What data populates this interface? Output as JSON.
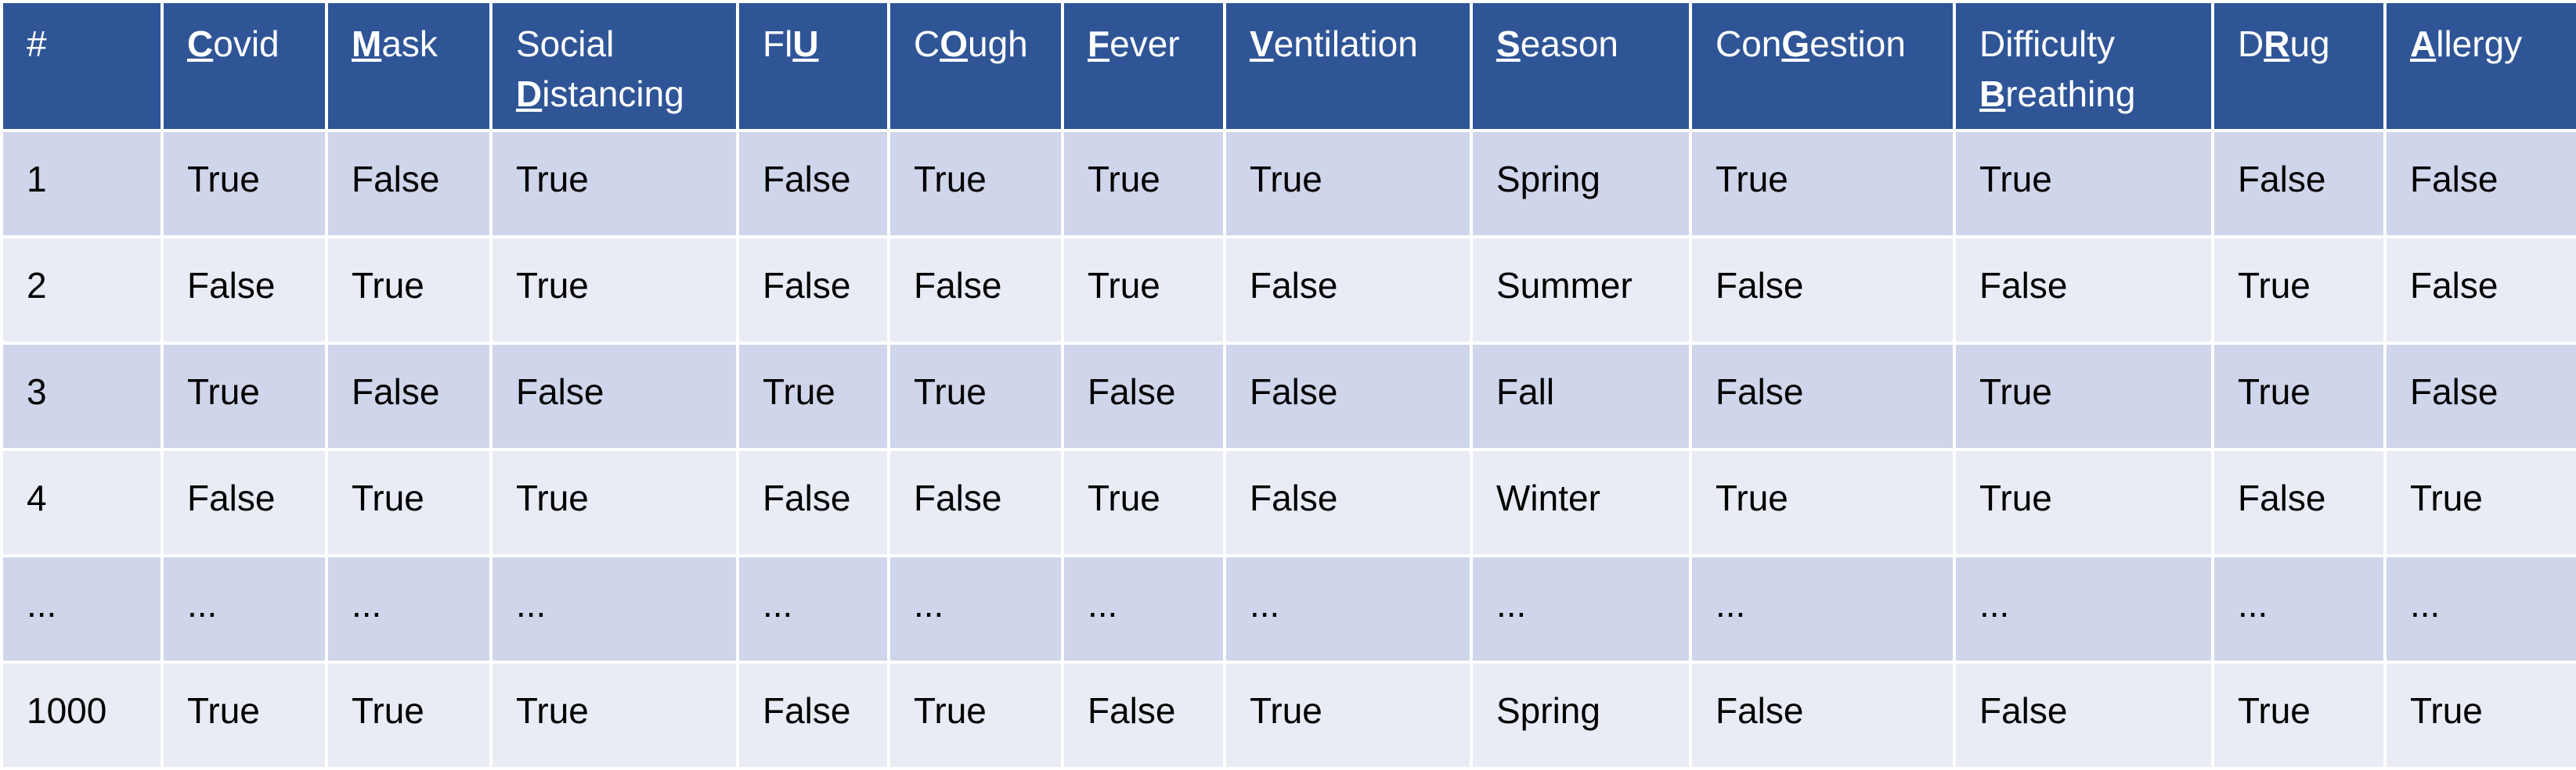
{
  "table": {
    "headers": [
      {
        "pre": "#",
        "key": "",
        "post": "",
        "br": false,
        "pre2": "",
        "key2": "",
        "post2": ""
      },
      {
        "pre": "",
        "key": "C",
        "post": "ovid",
        "br": false,
        "pre2": "",
        "key2": "",
        "post2": ""
      },
      {
        "pre": "",
        "key": "M",
        "post": "ask",
        "br": false,
        "pre2": "",
        "key2": "",
        "post2": ""
      },
      {
        "pre": "Social",
        "key": "",
        "post": "",
        "br": true,
        "pre2": "",
        "key2": "D",
        "post2": "istancing"
      },
      {
        "pre": "Fl",
        "key": "U",
        "post": "",
        "br": false,
        "pre2": "",
        "key2": "",
        "post2": ""
      },
      {
        "pre": "C",
        "key": "O",
        "post": "ugh",
        "br": false,
        "pre2": "",
        "key2": "",
        "post2": ""
      },
      {
        "pre": "",
        "key": "F",
        "post": "ever",
        "br": false,
        "pre2": "",
        "key2": "",
        "post2": ""
      },
      {
        "pre": "",
        "key": "V",
        "post": "entilation",
        "br": false,
        "pre2": "",
        "key2": "",
        "post2": ""
      },
      {
        "pre": "",
        "key": "S",
        "post": "eason",
        "br": false,
        "pre2": "",
        "key2": "",
        "post2": ""
      },
      {
        "pre": "Con",
        "key": "G",
        "post": "estion",
        "br": false,
        "pre2": "",
        "key2": "",
        "post2": ""
      },
      {
        "pre": "Difficulty",
        "key": "",
        "post": "",
        "br": true,
        "pre2": "",
        "key2": "B",
        "post2": "reathing"
      },
      {
        "pre": "D",
        "key": "R",
        "post": "ug",
        "br": false,
        "pre2": "",
        "key2": "",
        "post2": ""
      },
      {
        "pre": "",
        "key": "A",
        "post": "llergy",
        "br": false,
        "pre2": "",
        "key2": "",
        "post2": ""
      }
    ],
    "rows": [
      [
        "1",
        "True",
        "False",
        "True",
        "False",
        "True",
        "True",
        "True",
        "Spring",
        "True",
        "True",
        "False",
        "False"
      ],
      [
        "2",
        "False",
        "True",
        "True",
        "False",
        "False",
        "True",
        "False",
        "Summer",
        "False",
        "False",
        "True",
        "False"
      ],
      [
        "3",
        "True",
        "False",
        "False",
        "True",
        "True",
        "False",
        "False",
        "Fall",
        "False",
        "True",
        "True",
        "False"
      ],
      [
        "4",
        "False",
        "True",
        "True",
        "False",
        "False",
        "True",
        "False",
        "Winter",
        "True",
        "True",
        "False",
        "True"
      ],
      [
        "...",
        "...",
        "...",
        "...",
        "...",
        "...",
        "...",
        "...",
        "...",
        "...",
        "...",
        "...",
        "..."
      ],
      [
        "1000",
        "True",
        "True",
        "True",
        "False",
        "True",
        "False",
        "True",
        "Spring",
        "False",
        "False",
        "True",
        "True"
      ]
    ]
  }
}
